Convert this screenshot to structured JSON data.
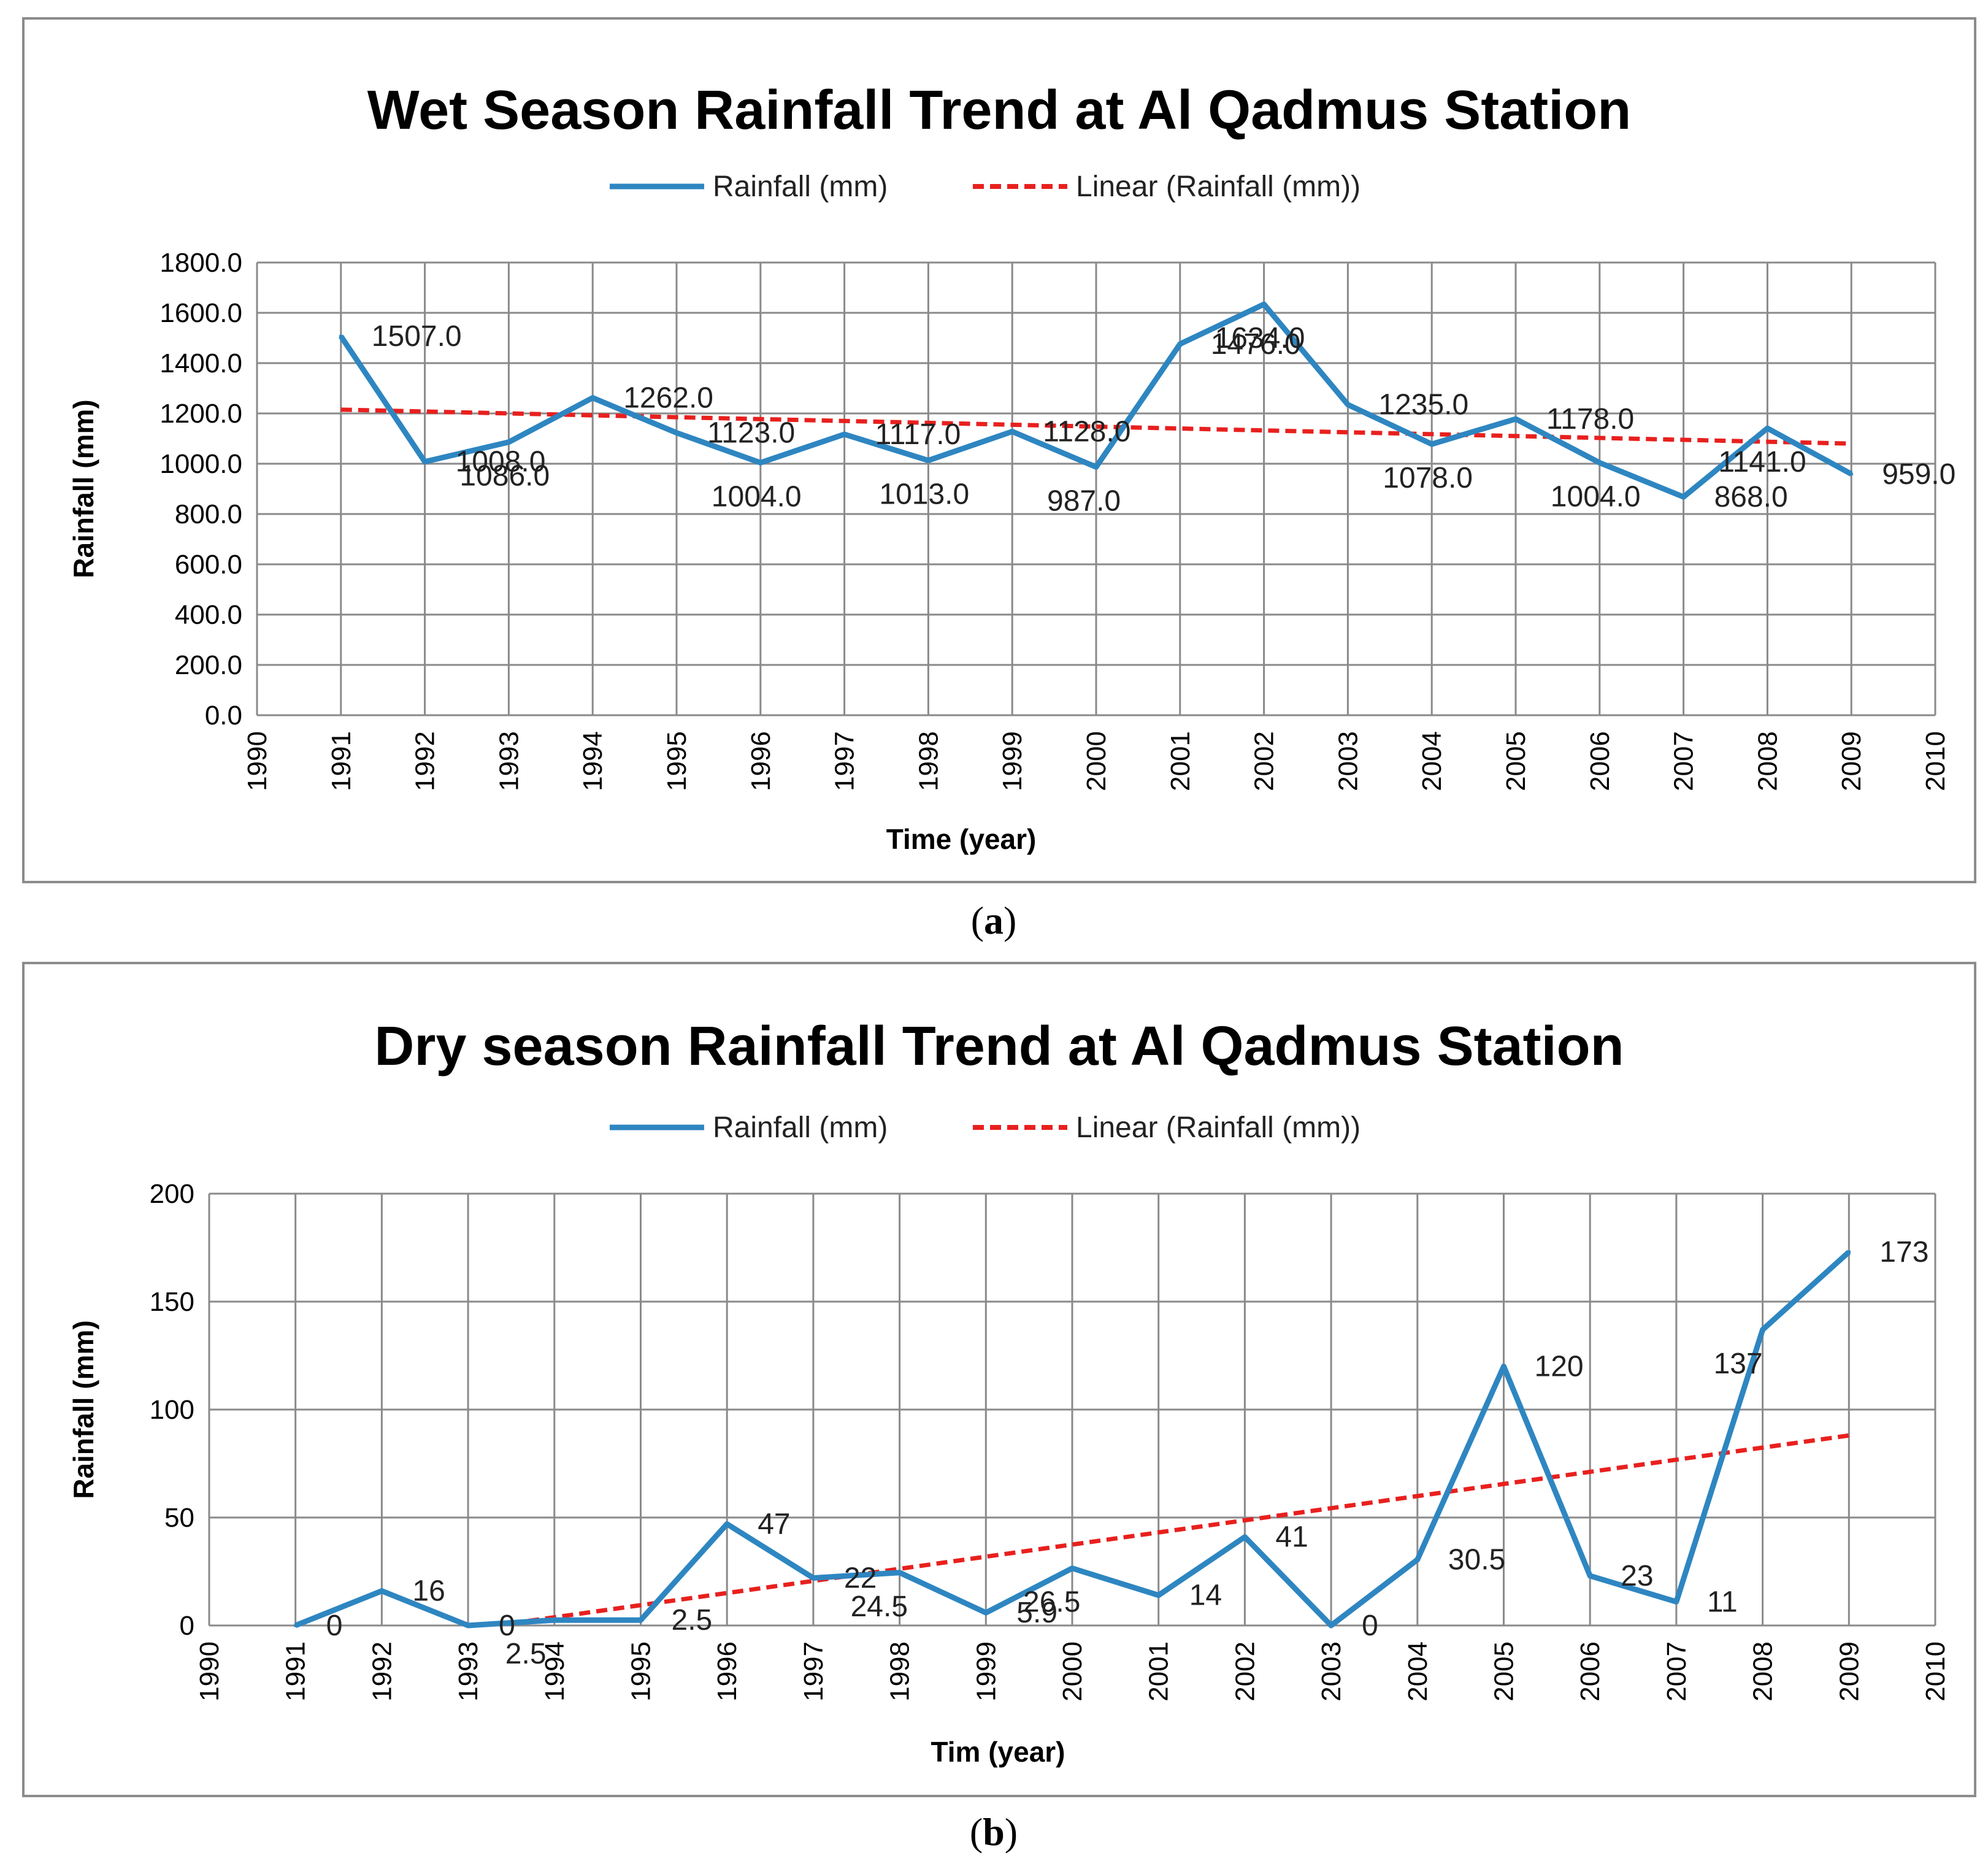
{
  "captions": {
    "a": "a",
    "b": "b"
  },
  "chart_data": [
    {
      "type": "line",
      "title": "Wet Season Rainfall Trend at Al Qadmus Station",
      "xlabel": "Time (year)",
      "ylabel": "Rainfall (mm)",
      "xlim": [
        1990,
        2010
      ],
      "ylim": [
        0,
        1800
      ],
      "y_ticks": [
        "0.0",
        "200.0",
        "400.0",
        "600.0",
        "800.0",
        "1000.0",
        "1200.0",
        "1400.0",
        "1600.0",
        "1800.0"
      ],
      "x_ticks": [
        "1990",
        "1991",
        "1992",
        "1993",
        "1994",
        "1995",
        "1996",
        "1997",
        "1998",
        "1999",
        "2000",
        "2001",
        "2002",
        "2003",
        "2004",
        "2005",
        "2006",
        "2007",
        "2008",
        "2009",
        "2010"
      ],
      "grid": true,
      "legend_position": "top",
      "series": [
        {
          "name": "Rainfall (mm)",
          "color": "#2e86c1",
          "x": [
            1991,
            1992,
            1993,
            1994,
            1995,
            1996,
            1997,
            1998,
            1999,
            2000,
            2001,
            2002,
            2003,
            2004,
            2005,
            2006,
            2007,
            2008,
            2009
          ],
          "values": [
            1507,
            1008,
            1086,
            1262,
            1123,
            1004,
            1117,
            1013,
            1128,
            987,
            1476,
            1634,
            1235,
            1078,
            1178,
            1004,
            868,
            1141,
            959
          ],
          "labels": [
            "1507.0",
            "1008.0",
            "1086.0",
            "1262.0",
            "1123.0",
            "1004.0",
            "1117.0",
            "1013.0",
            "1128.0",
            "987.0",
            "1476.0",
            "1634.0",
            "1235.0",
            "1078.0",
            "1178.0",
            "1004.0",
            "868.0",
            "1141.0",
            "959.0"
          ]
        },
        {
          "name": "Linear (Rainfall (mm))",
          "color": "#e8201e",
          "style": "dashed",
          "x": [
            1991,
            2009
          ],
          "values": [
            1215,
            1080
          ]
        }
      ]
    },
    {
      "type": "line",
      "title": "Dry season Rainfall Trend at Al Qadmus Station",
      "xlabel": "Tim (year)",
      "ylabel": "Rainfall (mm)",
      "xlim": [
        1990,
        2010
      ],
      "ylim": [
        0,
        200
      ],
      "y_ticks": [
        "0",
        "50",
        "100",
        "150",
        "200"
      ],
      "x_ticks": [
        "1990",
        "1991",
        "1992",
        "1993",
        "1994",
        "1995",
        "1996",
        "1997",
        "1998",
        "1999",
        "2000",
        "2001",
        "2002",
        "2003",
        "2004",
        "2005",
        "2006",
        "2007",
        "2008",
        "2009",
        "2010"
      ],
      "grid": true,
      "legend_position": "top",
      "series": [
        {
          "name": "Rainfall (mm)",
          "color": "#2e86c1",
          "x": [
            1991,
            1992,
            1993,
            1994,
            1995,
            1996,
            1997,
            1998,
            1999,
            2000,
            2001,
            2002,
            2003,
            2004,
            2005,
            2006,
            2007,
            2008,
            2009
          ],
          "values": [
            0,
            16,
            0,
            2.5,
            2.5,
            47,
            22,
            24.5,
            5.9,
            26.5,
            14,
            41,
            0,
            30.5,
            120,
            23,
            11,
            137,
            173
          ],
          "labels": [
            "0",
            "16",
            "0",
            "2.5",
            "2.5",
            "47",
            "22",
            "24.5",
            "5.9",
            "26.5",
            "14",
            "41",
            "0",
            "30.5",
            "120",
            "23",
            "11",
            "137",
            "173"
          ]
        },
        {
          "name": "Linear (Rainfall (mm))",
          "color": "#e8201e",
          "style": "dashed",
          "x": [
            1993.5,
            2009
          ],
          "values": [
            1,
            88
          ]
        }
      ]
    }
  ]
}
